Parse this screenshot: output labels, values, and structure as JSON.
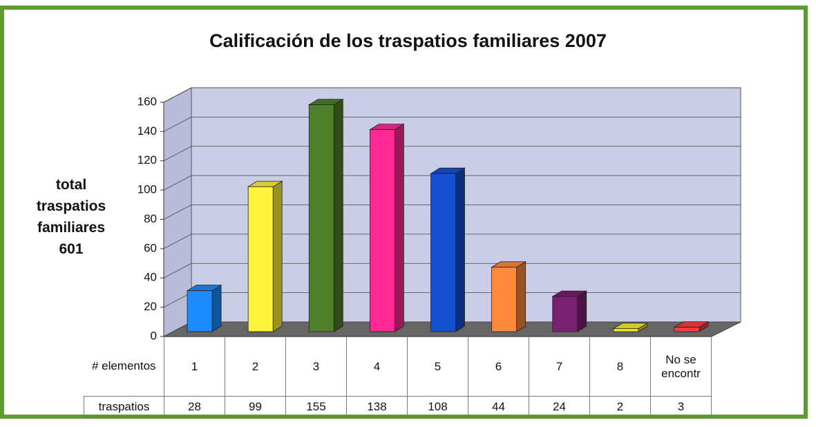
{
  "chart_data": {
    "type": "bar3d",
    "title": "Calificación de los traspatios familiares 2007",
    "y_label": "total traspatios familiares 601",
    "table_header_label": "# elementos",
    "table_row_label": "traspatios",
    "categories": [
      "1",
      "2",
      "3",
      "4",
      "5",
      "6",
      "7",
      "8",
      "No se encontr"
    ],
    "values": [
      28,
      99,
      155,
      138,
      108,
      44,
      24,
      2,
      3
    ],
    "colors": [
      "#1e8cff",
      "#fff23a",
      "#4f7f2a",
      "#ff2a96",
      "#1450d0",
      "#ff8a3d",
      "#7a1f72",
      "#f3ef2a",
      "#ff3b3b"
    ],
    "ylim": [
      0,
      160
    ],
    "yticks": [
      0,
      20,
      40,
      60,
      80,
      100,
      120,
      140,
      160
    ],
    "grid": true
  }
}
